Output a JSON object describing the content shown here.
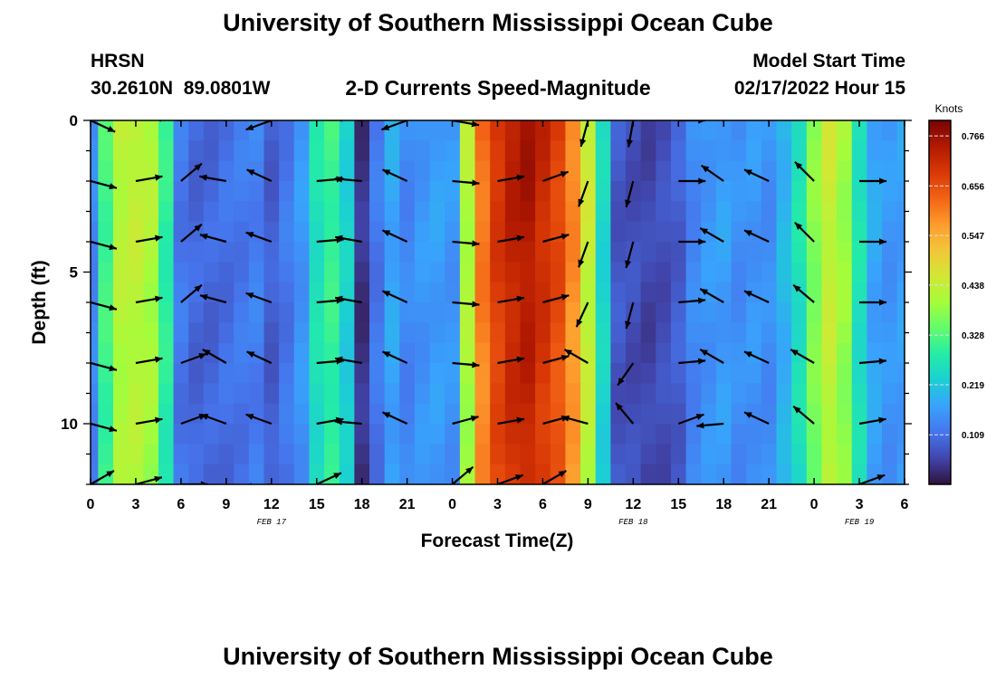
{
  "header": {
    "title": "University of Southern Mississippi Ocean Cube",
    "station": "HRSN",
    "coords": "30.2610N  89.0801W",
    "subtitle": "2-D Currents Speed-Magnitude",
    "model_label": "Model Start Time",
    "model_time": "02/17/2022 Hour 15"
  },
  "footer": {
    "title": "University of Southern Mississippi Ocean Cube"
  },
  "colors": {
    "background": "#ffffff",
    "arrow": "#000000",
    "colormap": [
      "#30123b",
      "#4145ab",
      "#4675ed",
      "#39a2fc",
      "#1bcfd4",
      "#24eca6",
      "#61fc6c",
      "#a4fc3b",
      "#d1e834",
      "#f3c63a",
      "#fe9b2d",
      "#f36315",
      "#d93806",
      "#b11901",
      "#7a0403"
    ]
  },
  "chart_data": {
    "type": "heatmap",
    "title": "2-D Currents Speed-Magnitude",
    "xlabel": "Forecast Time(Z)",
    "ylabel": "Depth (ft)",
    "colorbar_label": "Knots",
    "colorbar_ticks": [
      0.766,
      0.656,
      0.547,
      0.438,
      0.328,
      0.219,
      0.109
    ],
    "colorbar_range": [
      0.0,
      0.8
    ],
    "x_range_hours": [
      0,
      54
    ],
    "x_ticks": [
      "0",
      "3",
      "6",
      "9",
      "12",
      "15",
      "18",
      "21",
      "0",
      "3",
      "6",
      "9",
      "12",
      "15",
      "18",
      "21",
      "0",
      "3",
      "6"
    ],
    "date_labels": [
      {
        "text": "FEB 17",
        "hour": 12
      },
      {
        "text": "FEB 18",
        "hour": 36
      },
      {
        "text": "FEB 19",
        "hour": 51
      }
    ],
    "y_range_ft": [
      0,
      12
    ],
    "y_ticks": [
      0,
      5,
      10
    ],
    "depths_ft": [
      0,
      2,
      4,
      6,
      8,
      10,
      12
    ],
    "speed_profile": {
      "hours": [
        0,
        1,
        2,
        3,
        4,
        5,
        6,
        7,
        8,
        9,
        10,
        11,
        12,
        13,
        14,
        15,
        16,
        17,
        18,
        19,
        20,
        21,
        22,
        23,
        24,
        25,
        26,
        27,
        28,
        29,
        30,
        31,
        32,
        33,
        34,
        35,
        36,
        37,
        38,
        39,
        40,
        41,
        42,
        43,
        44,
        45,
        46,
        47,
        48,
        49,
        50,
        51,
        52,
        53,
        54
      ],
      "knots": [
        0.14,
        0.32,
        0.43,
        0.44,
        0.42,
        0.3,
        0.12,
        0.1,
        0.1,
        0.11,
        0.12,
        0.13,
        0.09,
        0.12,
        0.16,
        0.27,
        0.31,
        0.24,
        0.04,
        0.12,
        0.18,
        0.14,
        0.16,
        0.17,
        0.16,
        0.42,
        0.62,
        0.7,
        0.74,
        0.76,
        0.72,
        0.68,
        0.6,
        0.45,
        0.25,
        0.08,
        0.07,
        0.06,
        0.07,
        0.09,
        0.14,
        0.16,
        0.17,
        0.15,
        0.16,
        0.15,
        0.2,
        0.27,
        0.38,
        0.45,
        0.4,
        0.27,
        0.18,
        0.16,
        0.17
      ]
    },
    "vectors": [
      {
        "hour": 0,
        "angles": [
          -25,
          -15,
          -15,
          -15,
          -15,
          -15,
          30
        ]
      },
      {
        "hour": 3,
        "angles": [
          null,
          10,
          10,
          10,
          10,
          10,
          15
        ]
      },
      {
        "hour": 6,
        "angles": [
          175,
          40,
          40,
          40,
          20,
          20,
          0
        ]
      },
      {
        "hour": 9,
        "angles": [
          170,
          170,
          165,
          165,
          150,
          160,
          null
        ]
      },
      {
        "hour": 12,
        "angles": [
          -160,
          155,
          160,
          160,
          155,
          160,
          -175
        ]
      },
      {
        "hour": 15,
        "angles": [
          null,
          5,
          5,
          5,
          5,
          10,
          25
        ]
      },
      {
        "hour": 18,
        "angles": [
          175,
          175,
          170,
          170,
          170,
          175,
          null
        ]
      },
      {
        "hour": 21,
        "angles": [
          -160,
          155,
          155,
          155,
          155,
          155,
          null
        ]
      },
      {
        "hour": 24,
        "angles": [
          -10,
          -5,
          -5,
          -5,
          -5,
          15,
          40
        ]
      },
      {
        "hour": 27,
        "angles": [
          null,
          10,
          10,
          10,
          10,
          10,
          20
        ]
      },
      {
        "hour": 30,
        "angles": [
          null,
          20,
          15,
          15,
          15,
          15,
          30
        ]
      },
      {
        "hour": 33,
        "angles": [
          -105,
          -110,
          -110,
          -115,
          150,
          165,
          -150
        ]
      },
      {
        "hour": 36,
        "angles": [
          -100,
          -105,
          -105,
          -105,
          -125,
          130,
          -100
        ]
      },
      {
        "hour": 39,
        "angles": [
          0,
          0,
          0,
          5,
          5,
          20,
          -10
        ]
      },
      {
        "hour": 42,
        "angles": [
          150,
          145,
          150,
          150,
          150,
          -175,
          -140
        ]
      },
      {
        "hour": 45,
        "angles": [
          155,
          155,
          155,
          155,
          155,
          155,
          null
        ]
      },
      {
        "hour": 48,
        "angles": [
          135,
          135,
          135,
          140,
          150,
          140,
          null
        ]
      },
      {
        "hour": 51,
        "angles": [
          null,
          0,
          0,
          0,
          5,
          10,
          20
        ]
      }
    ]
  }
}
